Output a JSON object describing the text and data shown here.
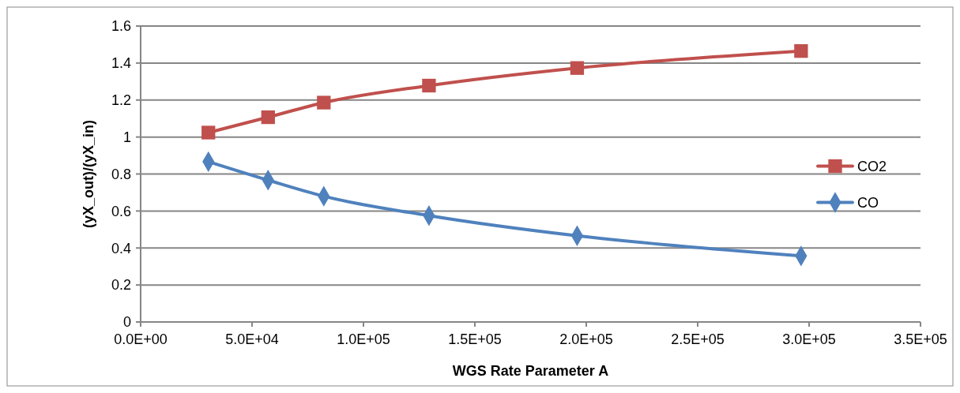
{
  "chart_data": {
    "type": "line",
    "xlabel": "WGS Rate Parameter A",
    "ylabel": "(yX_out)/(yX_in)",
    "xlim": [
      0,
      350000
    ],
    "xticks": [
      {
        "value": 0,
        "label": "0.0E+00"
      },
      {
        "value": 50000,
        "label": "5.0E+04"
      },
      {
        "value": 100000,
        "label": "1.0E+05"
      },
      {
        "value": 150000,
        "label": "1.5E+05"
      },
      {
        "value": 200000,
        "label": "2.0E+05"
      },
      {
        "value": 250000,
        "label": "2.5E+05"
      },
      {
        "value": 300000,
        "label": "3.0E+05"
      },
      {
        "value": 350000,
        "label": "3.5E+05"
      }
    ],
    "ylim": [
      0,
      1.6
    ],
    "yticks": [
      0,
      0.2,
      0.4,
      0.6,
      0.8,
      1,
      1.2,
      1.4,
      1.6
    ],
    "grid": "y",
    "legend": "right",
    "x": [
      30400,
      57200,
      82200,
      129400,
      195900,
      296400
    ],
    "series": [
      {
        "name": "CO2",
        "color": "#c0504d",
        "marker": "square",
        "values": [
          1.024,
          1.107,
          1.186,
          1.278,
          1.373,
          1.465
        ]
      },
      {
        "name": "CO",
        "color": "#4f81bd",
        "marker": "diamond",
        "values": [
          0.867,
          0.767,
          0.68,
          0.575,
          0.466,
          0.357
        ]
      }
    ]
  }
}
